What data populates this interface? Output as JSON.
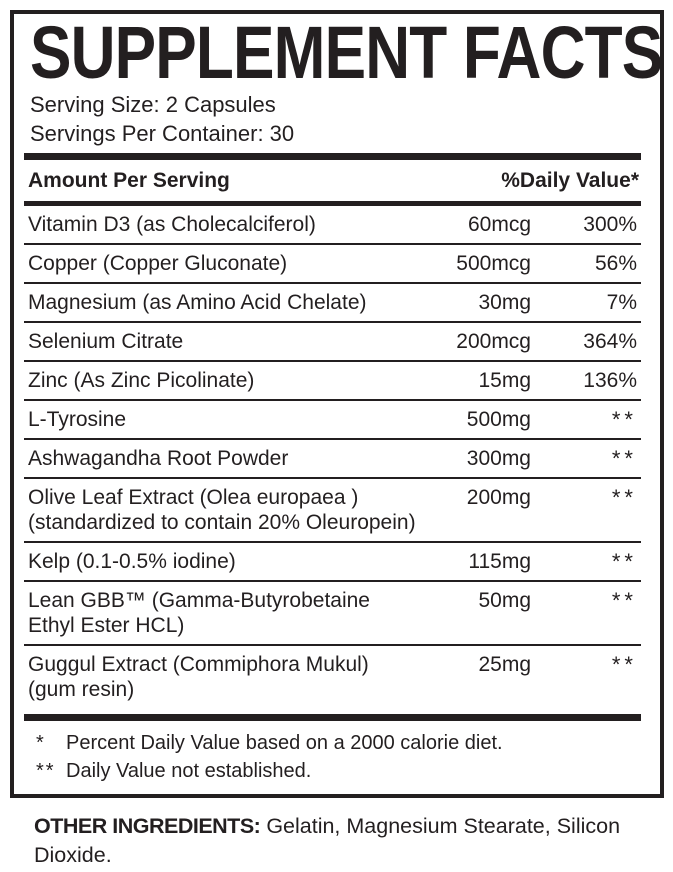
{
  "label": {
    "title": "SUPPLEMENT FACTS",
    "serving_size": "Serving Size: 2 Capsules",
    "servings_per_container": "Servings Per Container: 30",
    "columns": {
      "amount_per_serving": "Amount Per Serving",
      "daily_value": "%Daily Value*"
    },
    "rows": [
      {
        "name": "Vitamin D3 (as Cholecalciferol)",
        "name2": "",
        "amount": "60mcg",
        "dv": "300%"
      },
      {
        "name": "Copper (Copper Gluconate)",
        "name2": "",
        "amount": "500mcg",
        "dv": "56%"
      },
      {
        "name": "Magnesium (as Amino Acid Chelate)",
        "name2": "",
        "amount": "30mg",
        "dv": "7%"
      },
      {
        "name": "Selenium Citrate",
        "name2": "",
        "amount": "200mcg",
        "dv": "364%"
      },
      {
        "name": "Zinc (As Zinc Picolinate)",
        "name2": "",
        "amount": "15mg",
        "dv": "136%"
      },
      {
        "name": "L-Tyrosine",
        "name2": "",
        "amount": "500mg",
        "dv": "**"
      },
      {
        "name": "Ashwagandha Root Powder",
        "name2": "",
        "amount": "300mg",
        "dv": "**"
      },
      {
        "name": "Olive Leaf Extract (Olea europaea )",
        "name2": "(standardized to contain 20% Oleuropein)",
        "amount": "200mg",
        "dv": "**"
      },
      {
        "name": "Kelp (0.1-0.5% iodine)",
        "name2": "",
        "amount": "115mg",
        "dv": "**"
      },
      {
        "name": "Lean GBB™ (Gamma-Butyrobetaine",
        "name2": "Ethyl Ester HCL)",
        "amount": "50mg",
        "dv": "**"
      },
      {
        "name": "Guggul Extract (Commiphora Mukul)",
        "name2": "(gum resin)",
        "amount": "25mg",
        "dv": "**"
      }
    ],
    "footnotes": [
      {
        "mark": "*",
        "text": "Percent Daily Value based on a 2000 calorie diet."
      },
      {
        "mark": "**",
        "text": "Daily Value not established."
      }
    ],
    "other_ingredients": {
      "label": "OTHER INGREDIENTS:",
      "text": "Gelatin, Magnesium Stearate, Silicon Dioxide."
    }
  },
  "colors": {
    "ink": "#231f20",
    "background": "#ffffff"
  }
}
